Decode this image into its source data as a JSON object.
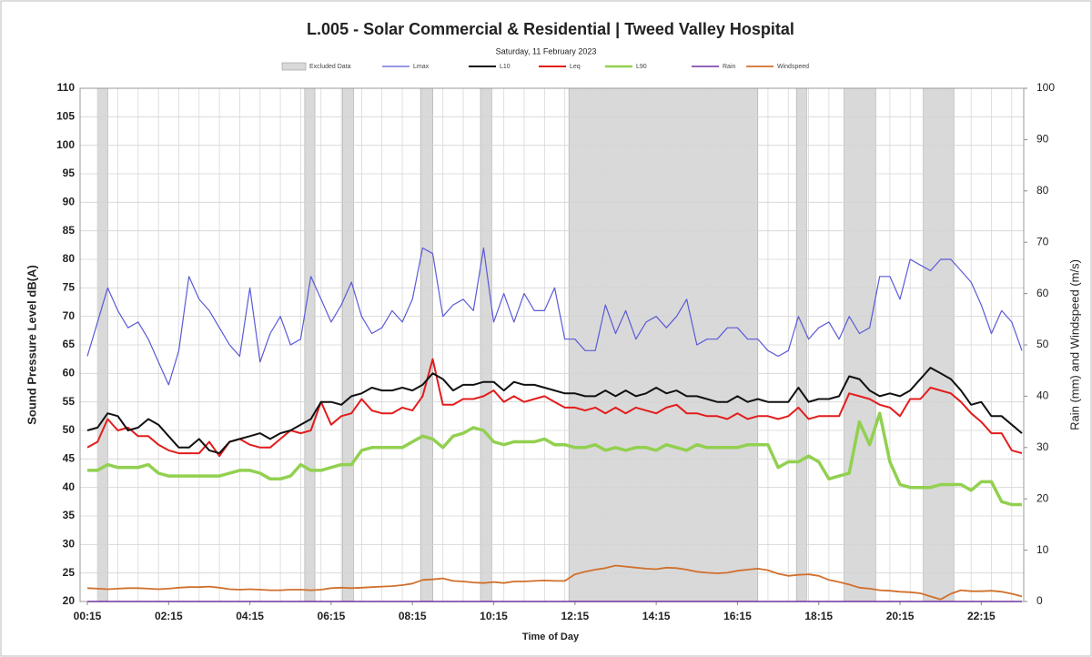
{
  "chart_data": {
    "type": "line",
    "title": "L.005 - Solar Commercial & Residential | Tweed Valley Hospital",
    "subtitle": "Saturday, 11 February 2023",
    "x_label": "Time of Day",
    "y_label": "Sound Pressure Level dB(A)",
    "y2_label": "Rain (mm) and Windspeed (m/s)",
    "legend": "top",
    "grid": true,
    "excluded_label": "Excluded Data",
    "excluded_color": "#d9d9d9",
    "excluded_data": [
      [
        1,
        2
      ],
      [
        21.4,
        22.4
      ],
      [
        25.1,
        26.2
      ],
      [
        32.8,
        34
      ],
      [
        38.7,
        39.8
      ],
      [
        47.4,
        66
      ],
      [
        69.8,
        70.8
      ],
      [
        74.5,
        77.6
      ],
      [
        82.3,
        85.3
      ]
    ],
    "categories": [
      "00:15",
      null,
      null,
      null,
      null,
      null,
      null,
      null,
      "02:15",
      null,
      null,
      null,
      null,
      null,
      null,
      null,
      "04:15",
      null,
      null,
      null,
      null,
      null,
      null,
      null,
      "06:15",
      null,
      null,
      null,
      null,
      null,
      null,
      null,
      "08:15",
      null,
      null,
      null,
      null,
      null,
      null,
      null,
      "10:15",
      null,
      null,
      null,
      null,
      null,
      null,
      null,
      "12:15",
      null,
      null,
      null,
      null,
      null,
      null,
      null,
      "14:15",
      null,
      null,
      null,
      null,
      null,
      null,
      null,
      "16:15",
      null,
      null,
      null,
      null,
      null,
      null,
      null,
      "18:15",
      null,
      null,
      null,
      null,
      null,
      null,
      null,
      "20:15",
      null,
      null,
      null,
      null,
      null,
      null,
      null,
      "22:15",
      null,
      null,
      null,
      null
    ],
    "ylim": [
      20,
      110
    ],
    "yticks": [
      20,
      25,
      30,
      35,
      40,
      45,
      50,
      55,
      60,
      65,
      70,
      75,
      80,
      85,
      90,
      95,
      100,
      105,
      110
    ],
    "y2lim": [
      0,
      100
    ],
    "y2ticks": [
      0,
      10,
      20,
      30,
      40,
      50,
      60,
      70,
      80,
      90,
      100
    ],
    "series": [
      {
        "name": "Lmax",
        "color": "#5a5ad8",
        "width": 1.2,
        "values": [
          63,
          69,
          75,
          71,
          68,
          69,
          66,
          62,
          58,
          64,
          77,
          73,
          71,
          68,
          65,
          63,
          75,
          62,
          67,
          70,
          65,
          66,
          77,
          73,
          69,
          72,
          76,
          70,
          67,
          68,
          71,
          69,
          73,
          82,
          81,
          70,
          72,
          73,
          71,
          82,
          69,
          74,
          69,
          74,
          71,
          71,
          75,
          66,
          66,
          64,
          64,
          72,
          67,
          71,
          66,
          69,
          70,
          68,
          70,
          73,
          65,
          66,
          66,
          68,
          68,
          66,
          66,
          64,
          63,
          64,
          70,
          66,
          68,
          69,
          66,
          70,
          67,
          68,
          77,
          77,
          73,
          80,
          79,
          78,
          80,
          80,
          78,
          76,
          72,
          67,
          71,
          69,
          64
        ]
      },
      {
        "name": "L10",
        "color": "#111111",
        "width": 2,
        "values": [
          50,
          50.5,
          53,
          52.5,
          50,
          50.5,
          52,
          51,
          49,
          47,
          47,
          48.5,
          46.5,
          46,
          48,
          48.5,
          49,
          49.5,
          48.5,
          49.5,
          50,
          51,
          52,
          55,
          55,
          54.5,
          56,
          56.5,
          57.5,
          57,
          57,
          57.5,
          57,
          58,
          60,
          59,
          57,
          58,
          58,
          58.5,
          58.5,
          57,
          58.5,
          58,
          58,
          57.5,
          57,
          56.5,
          56.5,
          56,
          56,
          57,
          56,
          57,
          56,
          56.5,
          57.5,
          56.5,
          57,
          56,
          56,
          55.5,
          55,
          55,
          56,
          55,
          55.5,
          55,
          55,
          55,
          57.5,
          55,
          55.5,
          55.5,
          56,
          59.5,
          59,
          57,
          56,
          56.5,
          56,
          57,
          59,
          61,
          60,
          59,
          57,
          54.5,
          55,
          52.5,
          52.5,
          51,
          49.5
        ]
      },
      {
        "name": "Leq",
        "color": "#e21d1d",
        "width": 2,
        "values": [
          47,
          48,
          52,
          50,
          50.5,
          49,
          49,
          47.5,
          46.5,
          46,
          46,
          46,
          48,
          45.5,
          48,
          48.5,
          47.5,
          47,
          47,
          48.5,
          50,
          49.5,
          50,
          55,
          51,
          52.5,
          53,
          55.5,
          53.5,
          53,
          53,
          54,
          53.5,
          56,
          62.5,
          54.5,
          54.5,
          55.5,
          55.5,
          56,
          57,
          55,
          56,
          55,
          55.5,
          56,
          55,
          54,
          54,
          53.5,
          54,
          53,
          54,
          53,
          54,
          53.5,
          53,
          54,
          54.5,
          53,
          53,
          52.5,
          52.5,
          52,
          53,
          52,
          52.5,
          52.5,
          52,
          52.5,
          54,
          52,
          52.5,
          52.5,
          52.5,
          56.5,
          56,
          55.5,
          54.5,
          54,
          52.5,
          55.5,
          55.5,
          57.5,
          57,
          56.5,
          55,
          53,
          51.5,
          49.5,
          49.5,
          46.5,
          46
        ]
      },
      {
        "name": "L90",
        "color": "#92d050",
        "width": 3.5,
        "values": [
          43,
          43,
          44,
          43.5,
          43.5,
          43.5,
          44,
          42.5,
          42,
          42,
          42,
          42,
          42,
          42,
          42.5,
          43,
          43,
          42.5,
          41.5,
          41.5,
          42,
          44,
          43,
          43,
          43.5,
          44,
          44,
          46.5,
          47,
          47,
          47,
          47,
          48,
          49,
          48.5,
          47,
          49,
          49.5,
          50.5,
          50,
          48,
          47.5,
          48,
          48,
          48,
          48.5,
          47.5,
          47.5,
          47,
          47,
          47.5,
          46.5,
          47,
          46.5,
          47,
          47,
          46.5,
          47.5,
          47,
          46.5,
          47.5,
          47,
          47,
          47,
          47,
          47.5,
          47.5,
          47.5,
          43.5,
          44.5,
          44.5,
          45.5,
          44.5,
          41.5,
          42,
          42.5,
          51.5,
          47.5,
          53,
          44.5,
          40.5,
          40,
          40,
          40,
          40.5,
          40.5,
          40.5,
          39.5,
          41,
          41,
          37.5,
          37,
          37
        ]
      },
      {
        "name": "Rain",
        "color": "#7030a0",
        "width": 1.5,
        "axis": "y2",
        "values": [
          0,
          0,
          0,
          0,
          0,
          0,
          0,
          0,
          0,
          0,
          0,
          0,
          0,
          0,
          0,
          0,
          0,
          0,
          0,
          0,
          0,
          0,
          0,
          0,
          0,
          0,
          0,
          0,
          0,
          0,
          0,
          0,
          0,
          0,
          0,
          0,
          0,
          0,
          0,
          0,
          0,
          0,
          0,
          0,
          0,
          0,
          0,
          0,
          0,
          0,
          0,
          0,
          0,
          0,
          0,
          0,
          0,
          0,
          0,
          0,
          0,
          0,
          0,
          0,
          0,
          0,
          0,
          0,
          0,
          0,
          0,
          0,
          0,
          0,
          0,
          0,
          0,
          0,
          0,
          0,
          0,
          0,
          0,
          0,
          0,
          0,
          0,
          0,
          0,
          0,
          0,
          0,
          0
        ]
      },
      {
        "name": "Windspeed",
        "color": "#d0702c",
        "width": 1.8,
        "axis": "y2",
        "values": [
          2.6,
          2.5,
          2.4,
          2.5,
          2.6,
          2.6,
          2.5,
          2.4,
          2.5,
          2.7,
          2.8,
          2.8,
          2.9,
          2.7,
          2.4,
          2.3,
          2.4,
          2.3,
          2.2,
          2.2,
          2.3,
          2.3,
          2.2,
          2.3,
          2.6,
          2.7,
          2.6,
          2.7,
          2.8,
          2.9,
          3.0,
          3.2,
          3.5,
          4.2,
          4.3,
          4.5,
          4.0,
          3.9,
          3.7,
          3.6,
          3.8,
          3.6,
          3.9,
          3.9,
          4.0,
          4.1,
          4.0,
          4.0,
          5.3,
          5.8,
          6.2,
          6.5,
          7.0,
          6.8,
          6.6,
          6.4,
          6.3,
          6.6,
          6.5,
          6.2,
          5.8,
          5.6,
          5.5,
          5.6,
          6.0,
          6.2,
          6.4,
          6.1,
          5.4,
          5.0,
          5.2,
          5.3,
          5.0,
          4.2,
          3.8,
          3.3,
          2.7,
          2.5,
          2.2,
          2.1,
          1.9,
          1.8,
          1.6,
          1.0,
          0.4,
          1.5,
          2.2,
          2.0,
          2.0,
          2.1,
          1.9,
          1.5,
          1.0
        ]
      }
    ]
  }
}
